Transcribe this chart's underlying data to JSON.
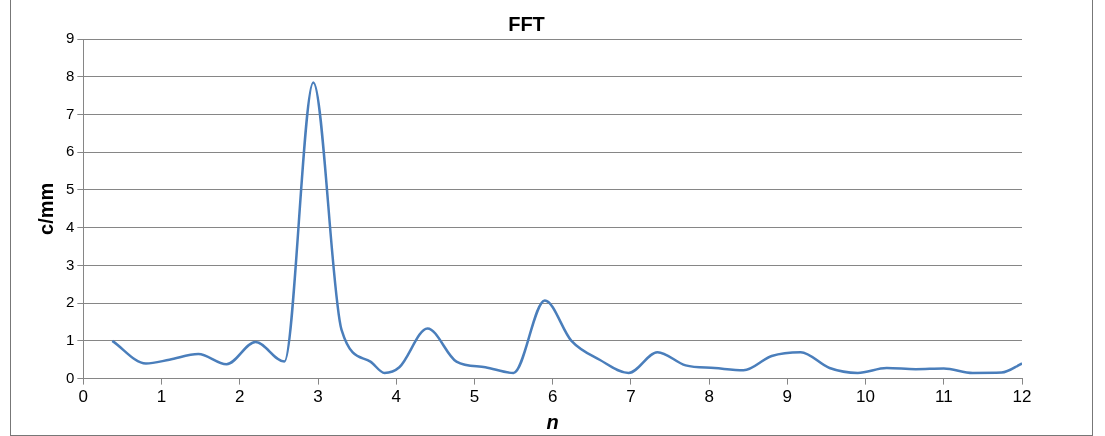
{
  "chart_data": {
    "type": "line",
    "title": "FFT",
    "xlabel": "n",
    "ylabel": "c/mm",
    "x": [
      0.37,
      0.8,
      1.1,
      1.47,
      1.83,
      2.2,
      2.57,
      2.94,
      3.3,
      3.67,
      3.85,
      4.04,
      4.4,
      4.77,
      5.14,
      5.5,
      5.9,
      6.24,
      6.6,
      6.97,
      7.34,
      7.7,
      8.07,
      8.44,
      8.8,
      9.17,
      9.54,
      9.9,
      10.27,
      10.64,
      11.0,
      11.37,
      11.74,
      12.0
    ],
    "series": [
      {
        "color": "#4a7ebb",
        "values": [
          1.0,
          0.4,
          0.5,
          0.65,
          0.38,
          0.97,
          0.45,
          7.85,
          1.3,
          0.45,
          0.15,
          0.3,
          1.33,
          0.45,
          0.3,
          0.15,
          2.07,
          1.0,
          0.5,
          0.15,
          0.7,
          0.35,
          0.28,
          0.22,
          0.6,
          0.7,
          0.28,
          0.15,
          0.28,
          0.25,
          0.27,
          0.15,
          0.16,
          0.4
        ]
      }
    ],
    "xlim": [
      0,
      12
    ],
    "xticks": [
      0,
      1,
      2,
      3,
      4,
      5,
      6,
      7,
      8,
      9,
      10,
      11,
      12
    ],
    "ylim": [
      0,
      9
    ],
    "yticks": [
      0,
      1,
      2,
      3,
      4,
      5,
      6,
      7,
      8,
      9
    ],
    "grid": "y",
    "legend": false,
    "marker": "none",
    "line_style": "solid"
  }
}
